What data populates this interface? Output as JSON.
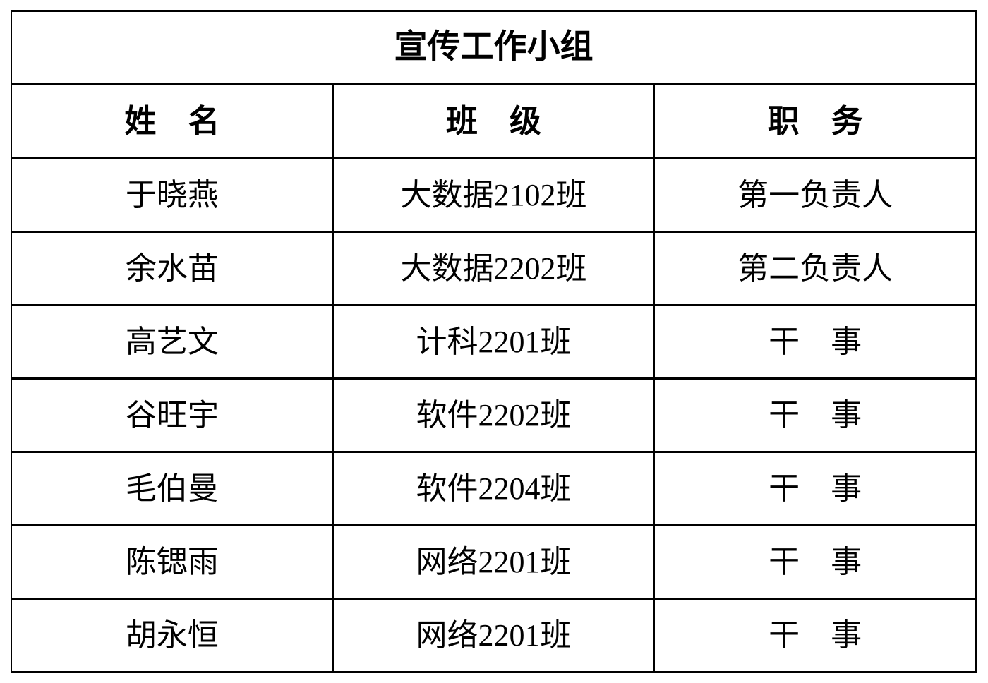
{
  "table": {
    "title": "宣传工作小组",
    "headers": [
      "姓　名",
      "班　级",
      "职　务"
    ],
    "rows": [
      [
        "于晓燕",
        "大数据2102班",
        "第一负责人"
      ],
      [
        "余水苗",
        "大数据2202班",
        "第二负责人"
      ],
      [
        "高艺文",
        "计科2201班",
        "干　事"
      ],
      [
        "谷旺宇",
        "软件2202班",
        "干　事"
      ],
      [
        "毛伯曼",
        "软件2204班",
        "干　事"
      ],
      [
        "陈锶雨",
        "网络2201班",
        "干　事"
      ],
      [
        "胡永恒",
        "网络2201班",
        "干　事"
      ]
    ],
    "colors": {
      "border": "#000000",
      "text": "#000000",
      "background": "#ffffff"
    }
  }
}
